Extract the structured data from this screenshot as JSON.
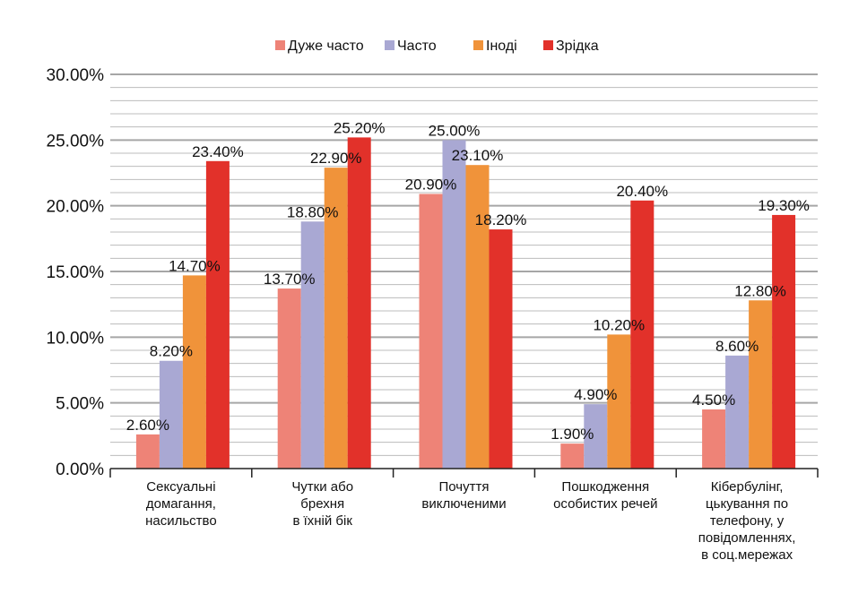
{
  "chart_data": {
    "type": "bar",
    "title": "",
    "xlabel": "",
    "ylabel": "",
    "ylim": [
      0,
      30
    ],
    "y_tick_labels": [
      "0.00%",
      "5.00%",
      "10.00%",
      "15.00%",
      "20.00%",
      "25.00%",
      "30.00%"
    ],
    "y_ticks": [
      0,
      5,
      10,
      15,
      20,
      25,
      30
    ],
    "grid": true,
    "legend_position": "top",
    "categories": [
      "Сексуальні домагання, насильство",
      "Чутки або брехня в їхній бік",
      "Почуття виключеними",
      "Пошкодження особистих речей",
      "Кібербулінг, цькування по телефону, у повідомленнях, в соц.мережах"
    ],
    "category_lines": [
      [
        "Сексуальні",
        "домагання,",
        "насильство"
      ],
      [
        "Чутки або",
        "брехня",
        "в їхній бік"
      ],
      [
        "Почуття",
        "виключеними"
      ],
      [
        "Пошкодження",
        "особистих речей"
      ],
      [
        "Кібербулінг,",
        "цькування по",
        "телефону, у",
        "повідомленнях,",
        "в соц.мережах"
      ]
    ],
    "series": [
      {
        "name": "Дуже часто",
        "color": "#EE8377",
        "values": [
          2.6,
          13.7,
          20.9,
          1.9,
          4.5
        ],
        "labels": [
          "2.60%",
          "13.70%",
          "20.90%",
          "1.90%",
          "4.50%"
        ]
      },
      {
        "name": "Часто",
        "color": "#A9A8D3",
        "values": [
          8.2,
          18.8,
          25.0,
          4.9,
          8.6
        ],
        "labels": [
          "8.20%",
          "18.80%",
          "25.00%",
          "4.90%",
          "8.60%"
        ]
      },
      {
        "name": "Іноді",
        "color": "#F0933A",
        "values": [
          14.7,
          22.9,
          23.1,
          10.2,
          12.8
        ],
        "labels": [
          "14.70%",
          "22.90%",
          "23.10%",
          "10.20%",
          "12.80%"
        ]
      },
      {
        "name": "Зрідка",
        "color": "#E2312A",
        "values": [
          23.4,
          25.2,
          18.2,
          20.4,
          19.3
        ],
        "labels": [
          "23.40%",
          "25.20%",
          "18.20%",
          "20.40%",
          "19.30%"
        ]
      }
    ],
    "grid_color": "#A6A6A6",
    "axis_color": "#222222"
  }
}
